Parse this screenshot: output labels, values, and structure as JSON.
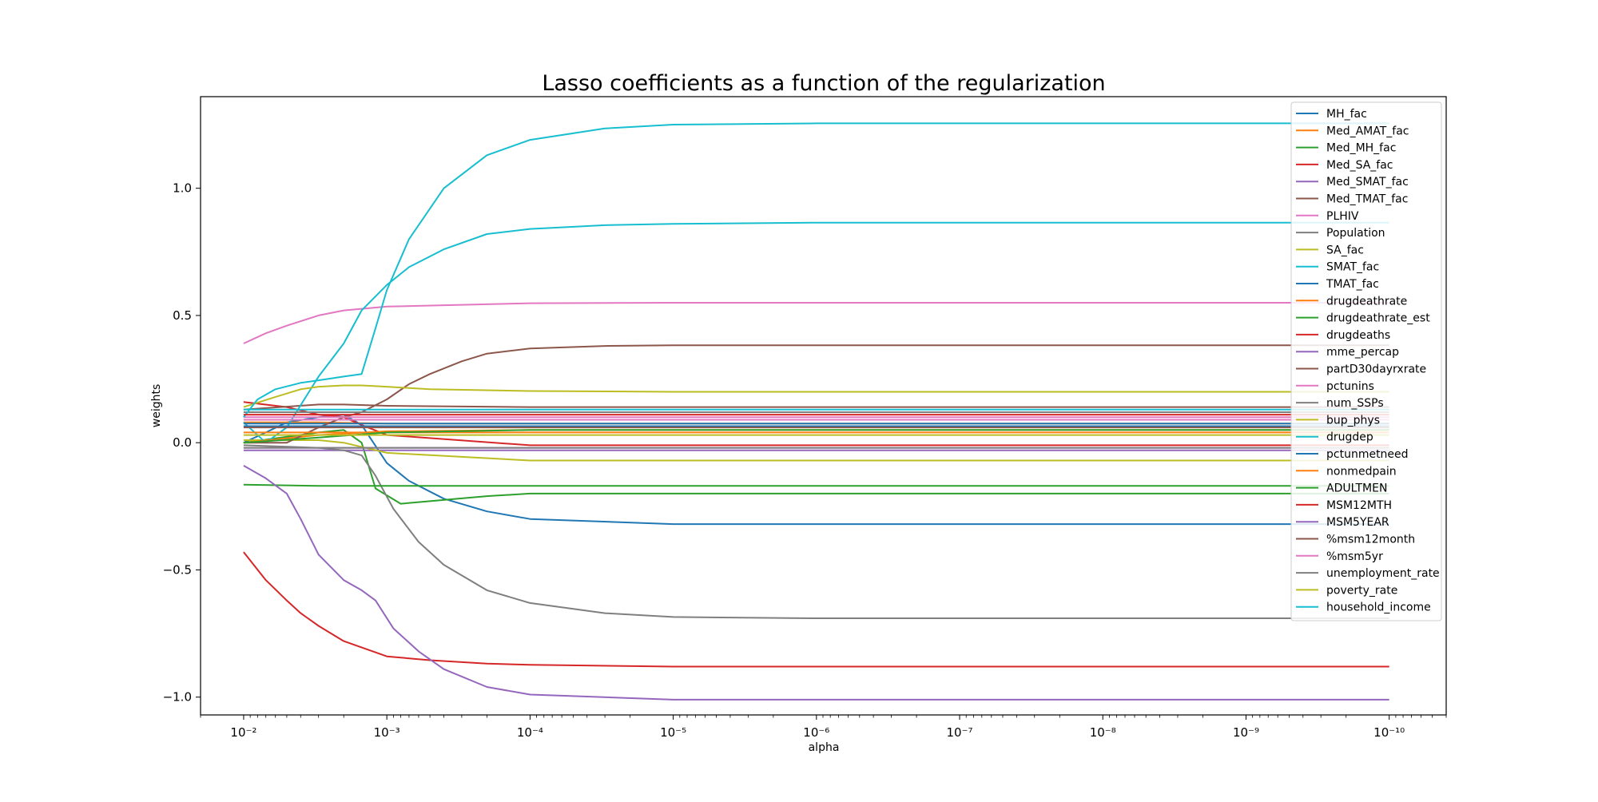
{
  "chart_data": {
    "type": "line",
    "title": "Lasso coefficients as a function of the regularization",
    "xlabel": "alpha",
    "ylabel": "weights",
    "x_scale": "log",
    "x_reversed": true,
    "xlim": [
      0.02,
      4e-11
    ],
    "ylim": [
      -1.07,
      1.36
    ],
    "x_ticks": [
      0.01,
      0.001,
      0.0001,
      1e-05,
      1e-06,
      1e-07,
      1e-08,
      1e-09,
      1e-10
    ],
    "x_tick_labels": [
      "10⁻²",
      "10⁻³",
      "10⁻⁴",
      "10⁻⁵",
      "10⁻⁶",
      "10⁻⁷",
      "10⁻⁸",
      "10⁻⁹",
      "10⁻¹⁰"
    ],
    "y_ticks": [
      -1.0,
      -0.5,
      0.0,
      0.5,
      1.0
    ],
    "y_tick_labels": [
      "−1.0",
      "−0.5",
      "0.0",
      "0.5",
      "1.0"
    ],
    "grid": false,
    "legend_position": "top-right",
    "series": [
      {
        "name": "MH_fac",
        "color": "#1f77b4",
        "x": [
          0.01,
          0.007,
          0.005,
          0.003,
          0.002,
          0.0015,
          0.001,
          0.0007,
          0.0004,
          0.0002,
          0.0001,
          1e-05,
          1e-06,
          1e-10
        ],
        "values": [
          0.0,
          0.04,
          0.08,
          0.1,
          0.11,
          0.07,
          -0.08,
          -0.15,
          -0.22,
          -0.27,
          -0.3,
          -0.32,
          -0.32,
          -0.32
        ]
      },
      {
        "name": "Med_AMAT_fac",
        "color": "#ff7f0e",
        "x": [
          0.01,
          0.003,
          0.001,
          0.0001,
          1e-05,
          1e-10
        ],
        "values": [
          0.08,
          0.08,
          0.075,
          0.075,
          0.075,
          0.075
        ]
      },
      {
        "name": "Med_MH_fac",
        "color": "#2ca02c",
        "x": [
          0.01,
          0.003,
          0.002,
          0.0015,
          0.0012,
          0.0008,
          0.0005,
          0.0002,
          0.0001,
          1e-05,
          1e-10
        ],
        "values": [
          0.0,
          0.04,
          0.05,
          0.0,
          -0.18,
          -0.24,
          -0.23,
          -0.21,
          -0.2,
          -0.2,
          -0.2
        ]
      },
      {
        "name": "Med_SA_fac",
        "color": "#d62728",
        "x": [
          0.01,
          0.005,
          0.003,
          0.002,
          0.0015,
          0.001,
          0.0001,
          1e-05,
          1e-10
        ],
        "values": [
          0.16,
          0.14,
          0.11,
          0.1,
          0.07,
          0.03,
          -0.01,
          -0.01,
          -0.01
        ]
      },
      {
        "name": "Med_SMAT_fac",
        "color": "#9467bd",
        "x": [
          0.01,
          0.003,
          0.001,
          0.0001,
          1e-10
        ],
        "values": [
          -0.03,
          -0.03,
          -0.03,
          -0.03,
          -0.03
        ]
      },
      {
        "name": "Med_TMAT_fac",
        "color": "#8c564b",
        "x": [
          0.01,
          0.003,
          0.002,
          0.001,
          0.0001,
          1e-10
        ],
        "values": [
          0.13,
          0.15,
          0.15,
          0.145,
          0.14,
          0.14
        ]
      },
      {
        "name": "PLHIV",
        "color": "#e377c2",
        "x": [
          0.01,
          0.007,
          0.005,
          0.003,
          0.002,
          0.001,
          0.0001,
          1e-05,
          1e-10
        ],
        "values": [
          0.39,
          0.43,
          0.46,
          0.5,
          0.52,
          0.535,
          0.548,
          0.55,
          0.55
        ]
      },
      {
        "name": "Population",
        "color": "#7f7f7f",
        "x": [
          0.01,
          0.003,
          0.002,
          0.0015,
          0.0012,
          0.0009,
          0.0006,
          0.0004,
          0.0002,
          0.0001,
          3e-05,
          1e-05,
          1e-06,
          1e-10
        ],
        "values": [
          -0.01,
          -0.02,
          -0.03,
          -0.05,
          -0.13,
          -0.26,
          -0.39,
          -0.48,
          -0.58,
          -0.63,
          -0.67,
          -0.685,
          -0.69,
          -0.69
        ]
      },
      {
        "name": "SA_fac",
        "color": "#bcbd22",
        "x": [
          0.01,
          0.003,
          0.002,
          0.001,
          0.0001,
          1e-05,
          1e-10
        ],
        "values": [
          0.01,
          0.01,
          0.0,
          -0.04,
          -0.07,
          -0.07,
          -0.07
        ]
      },
      {
        "name": "SMAT_fac",
        "color": "#17becf",
        "x": [
          0.01,
          0.007,
          0.005,
          0.003,
          0.002,
          0.0015,
          0.001,
          0.0007,
          0.0004,
          0.0002,
          0.0001,
          3e-05,
          1e-05,
          1e-06,
          1e-10
        ],
        "values": [
          0.08,
          0.0,
          0.06,
          0.26,
          0.39,
          0.52,
          0.62,
          0.69,
          0.76,
          0.82,
          0.84,
          0.855,
          0.86,
          0.865,
          0.865
        ]
      },
      {
        "name": "TMAT_fac",
        "color": "#1f77b4",
        "x": [
          0.01,
          0.003,
          0.001,
          0.0001,
          1e-10
        ],
        "values": [
          0.075,
          0.075,
          0.075,
          0.075,
          0.075
        ]
      },
      {
        "name": "drugdeathrate",
        "color": "#ff7f0e",
        "x": [
          0.01,
          0.003,
          0.001,
          0.0001,
          1e-10
        ],
        "values": [
          0.0,
          0.03,
          0.045,
          0.05,
          0.05
        ]
      },
      {
        "name": "drugdeathrate_est",
        "color": "#2ca02c",
        "x": [
          0.01,
          0.003,
          0.001,
          0.0001,
          1e-10
        ],
        "values": [
          -0.165,
          -0.17,
          -0.17,
          -0.17,
          -0.17
        ]
      },
      {
        "name": "drugdeaths",
        "color": "#d62728",
        "x": [
          0.01,
          0.007,
          0.005,
          0.004,
          0.003,
          0.002,
          0.001,
          0.0005,
          0.0002,
          0.0001,
          1e-05,
          1e-10
        ],
        "values": [
          -0.43,
          -0.54,
          -0.62,
          -0.67,
          -0.72,
          -0.78,
          -0.84,
          -0.855,
          -0.868,
          -0.873,
          -0.88,
          -0.88
        ]
      },
      {
        "name": "mme_percap",
        "color": "#9467bd",
        "x": [
          0.01,
          0.007,
          0.005,
          0.004,
          0.003,
          0.002,
          0.0015,
          0.0012,
          0.0009,
          0.0006,
          0.0004,
          0.0002,
          0.0001,
          1e-05,
          1e-06,
          1e-10
        ],
        "values": [
          -0.09,
          -0.14,
          -0.2,
          -0.3,
          -0.44,
          -0.54,
          -0.58,
          -0.62,
          -0.73,
          -0.82,
          -0.89,
          -0.96,
          -0.99,
          -1.01,
          -1.01,
          -1.01
        ]
      },
      {
        "name": "partD30dayrxrate",
        "color": "#8c564b",
        "x": [
          0.01,
          0.005,
          0.003,
          0.002,
          0.0015,
          0.001,
          0.0007,
          0.0005,
          0.0003,
          0.0002,
          0.0001,
          3e-05,
          1e-05,
          1e-10
        ],
        "values": [
          0.0,
          0.0,
          0.06,
          0.1,
          0.12,
          0.17,
          0.23,
          0.27,
          0.32,
          0.35,
          0.37,
          0.38,
          0.383,
          0.383
        ]
      },
      {
        "name": "pctunins",
        "color": "#e377c2",
        "x": [
          0.01,
          0.003,
          0.001,
          0.0001,
          1e-10
        ],
        "values": [
          0.1,
          0.1,
          0.1,
          0.1,
          0.1
        ]
      },
      {
        "name": "num_SSPs",
        "color": "#7f7f7f",
        "x": [
          0.01,
          0.003,
          0.001,
          0.0001,
          1e-10
        ],
        "values": [
          0.12,
          0.12,
          0.12,
          0.12,
          0.12
        ]
      },
      {
        "name": "bup_phys",
        "color": "#bcbd22",
        "x": [
          0.01,
          0.006,
          0.004,
          0.003,
          0.002,
          0.0015,
          0.001,
          0.0005,
          0.0001,
          1e-05,
          1e-10
        ],
        "values": [
          0.14,
          0.18,
          0.21,
          0.22,
          0.225,
          0.225,
          0.22,
          0.21,
          0.203,
          0.2,
          0.2
        ]
      },
      {
        "name": "drugdep",
        "color": "#17becf",
        "x": [
          0.01,
          0.008,
          0.006,
          0.004,
          0.003,
          0.002,
          0.0015,
          0.0012,
          0.001,
          0.0007,
          0.0004,
          0.0002,
          0.0001,
          3e-05,
          1e-05,
          1e-06,
          1e-10
        ],
        "values": [
          0.1,
          0.17,
          0.21,
          0.235,
          0.245,
          0.26,
          0.27,
          0.45,
          0.6,
          0.8,
          1.0,
          1.13,
          1.19,
          1.235,
          1.25,
          1.255,
          1.255
        ]
      },
      {
        "name": "pctunmetneed",
        "color": "#1f77b4",
        "x": [
          0.01,
          0.003,
          0.001,
          0.0001,
          1e-10
        ],
        "values": [
          0.065,
          0.065,
          0.065,
          0.065,
          0.065
        ]
      },
      {
        "name": "nonmedpain",
        "color": "#ff7f0e",
        "x": [
          0.01,
          0.003,
          0.001,
          0.0001,
          1e-10
        ],
        "values": [
          0.04,
          0.04,
          0.04,
          0.04,
          0.04
        ]
      },
      {
        "name": "ADULTMEN",
        "color": "#2ca02c",
        "x": [
          0.01,
          0.003,
          0.001,
          0.0001,
          1e-10
        ],
        "values": [
          0.0,
          0.02,
          0.04,
          0.05,
          0.05
        ]
      },
      {
        "name": "MSM12MTH",
        "color": "#d62728",
        "x": [
          0.01,
          0.003,
          0.001,
          0.0001,
          1e-10
        ],
        "values": [
          0.11,
          0.11,
          0.11,
          0.11,
          0.11
        ]
      },
      {
        "name": "MSM5YEAR",
        "color": "#9467bd",
        "x": [
          0.01,
          0.003,
          0.001,
          0.0001,
          1e-10
        ],
        "values": [
          -0.02,
          -0.02,
          -0.02,
          -0.02,
          -0.02
        ]
      },
      {
        "name": "%msm12month",
        "color": "#8c564b",
        "x": [
          0.01,
          0.003,
          0.001,
          0.0001,
          1e-10
        ],
        "values": [
          0.06,
          0.06,
          0.06,
          0.06,
          0.06
        ]
      },
      {
        "name": "%msm5yr",
        "color": "#e377c2",
        "x": [
          0.01,
          0.003,
          0.001,
          0.0001,
          1e-10
        ],
        "values": [
          0.09,
          0.09,
          0.09,
          0.09,
          0.09
        ]
      },
      {
        "name": "unemployment_rate",
        "color": "#7f7f7f",
        "x": [
          0.01,
          0.003,
          0.001,
          0.0001,
          1e-10
        ],
        "values": [
          -0.02,
          -0.02,
          -0.02,
          -0.02,
          -0.02
        ]
      },
      {
        "name": "poverty_rate",
        "color": "#bcbd22",
        "x": [
          0.01,
          0.003,
          0.001,
          0.0001,
          1e-10
        ],
        "values": [
          0.03,
          0.03,
          0.03,
          0.03,
          0.03
        ]
      },
      {
        "name": "household_income",
        "color": "#17becf",
        "x": [
          0.01,
          0.003,
          0.001,
          0.0001,
          1e-10
        ],
        "values": [
          0.13,
          0.13,
          0.13,
          0.13,
          0.13
        ]
      }
    ]
  }
}
